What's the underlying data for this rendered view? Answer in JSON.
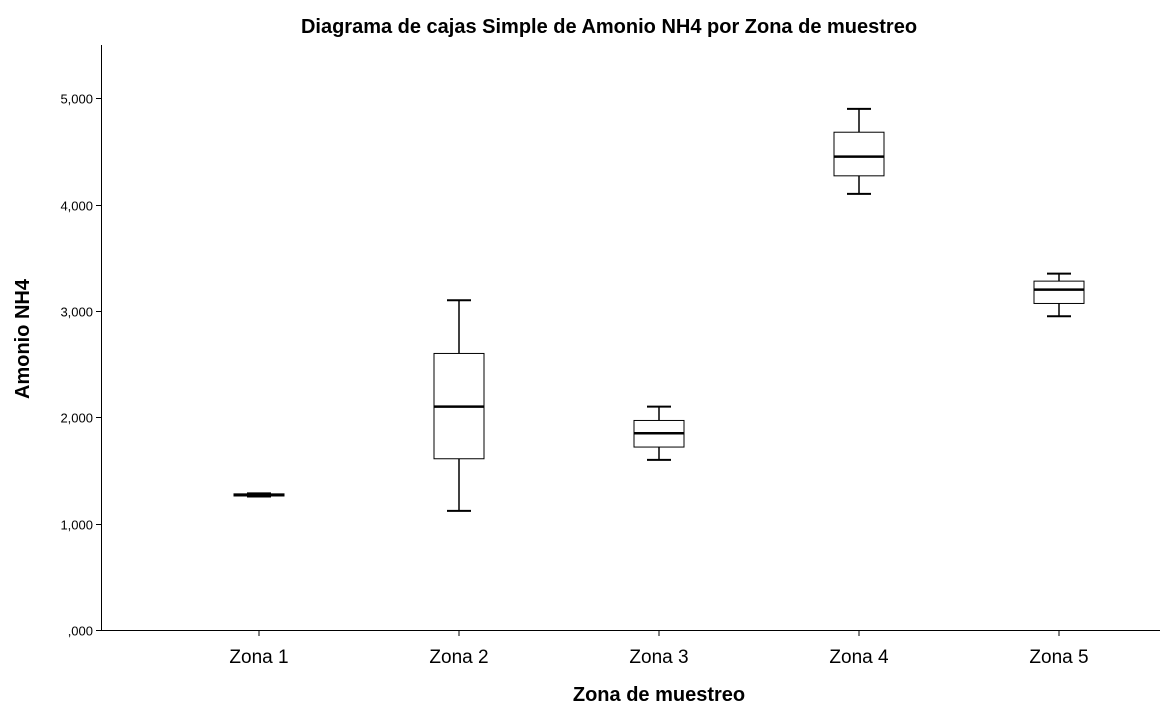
{
  "chart_data": {
    "type": "boxplot",
    "title": "Diagrama de cajas Simple de Amonio NH4 por Zona de muestreo",
    "xlabel": "Zona de muestreo",
    "ylabel": "Amonio NH4",
    "ylim": [
      0,
      5500
    ],
    "y_ticks": [
      {
        "value": 0,
        "label": ",000"
      },
      {
        "value": 1000,
        "label": "1,000"
      },
      {
        "value": 2000,
        "label": "2,000"
      },
      {
        "value": 3000,
        "label": "3,000"
      },
      {
        "value": 4000,
        "label": "4,000"
      },
      {
        "value": 5000,
        "label": "5,000"
      }
    ],
    "categories": [
      "Zona 1",
      "Zona 2",
      "Zona 3",
      "Zona 4",
      "Zona 5"
    ],
    "boxes": [
      {
        "category": "Zona 1",
        "min": 1255,
        "q1": 1260,
        "median": 1270,
        "q3": 1280,
        "max": 1285
      },
      {
        "category": "Zona 2",
        "min": 1120,
        "q1": 1610,
        "median": 2100,
        "q3": 2600,
        "max": 3100
      },
      {
        "category": "Zona 3",
        "min": 1600,
        "q1": 1720,
        "median": 1850,
        "q3": 1970,
        "max": 2100
      },
      {
        "category": "Zona 4",
        "min": 4100,
        "q1": 4270,
        "median": 4450,
        "q3": 4680,
        "max": 4900
      },
      {
        "category": "Zona 5",
        "min": 2950,
        "q1": 3070,
        "median": 3200,
        "q3": 3280,
        "max": 3350
      }
    ],
    "grid": false,
    "legend": "none"
  }
}
